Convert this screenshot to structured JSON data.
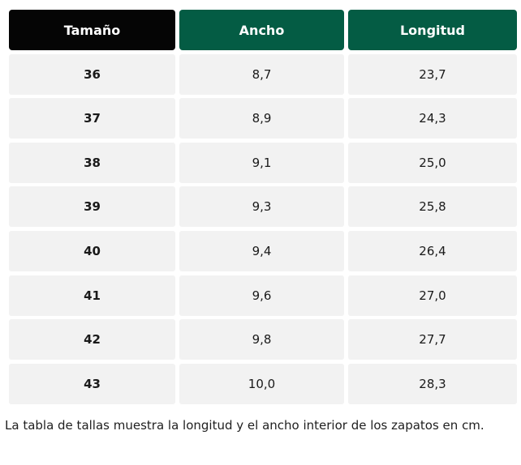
{
  "table": {
    "headers": [
      "Tamaño",
      "Ancho",
      "Longitud"
    ],
    "rows": [
      [
        "36",
        "8,7",
        "23,7"
      ],
      [
        "37",
        "8,9",
        "24,3"
      ],
      [
        "38",
        "9,1",
        "25,0"
      ],
      [
        "39",
        "9,3",
        "25,8"
      ],
      [
        "40",
        "9,4",
        "26,4"
      ],
      [
        "41",
        "9,6",
        "27,0"
      ],
      [
        "42",
        "9,8",
        "27,7"
      ],
      [
        "43",
        "10,0",
        "28,3"
      ]
    ]
  },
  "caption": "La tabla de tallas muestra la longitud y el ancho interior de los zapatos en cm.",
  "colors": {
    "header_size": "#050505",
    "header_other": "#045c44",
    "cell_background": "#f2f2f2"
  }
}
